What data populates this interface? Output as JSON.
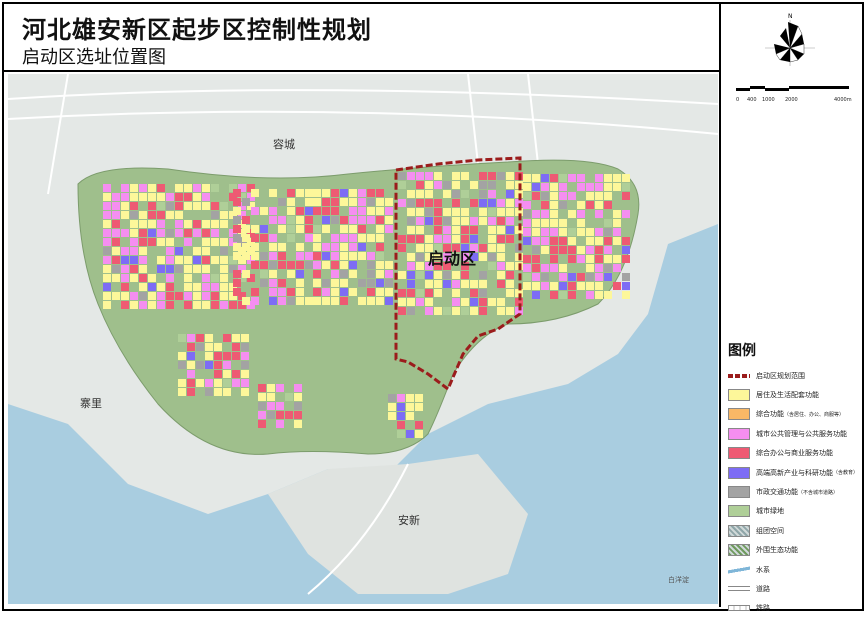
{
  "header": {
    "title": "河北雄安新区起步区控制性规划",
    "subtitle": "启动区选址位置图"
  },
  "compass": {
    "north_label": "N",
    "icon": "north-arrow-compass-rose"
  },
  "scale_bar": {
    "labels": [
      "0",
      "400",
      "1000",
      "2000",
      "4000m"
    ]
  },
  "map": {
    "labels": {
      "rongcheng": "容城",
      "qidongqu": "启动区",
      "zhaili": "寨里",
      "anxin": "安新",
      "baiyangdian": "白洋淀"
    }
  },
  "legend": {
    "title": "图例",
    "items": [
      {
        "label": "启动区规划范围",
        "note": "",
        "color": "#9b1c1c",
        "kind": "dashed-boundary"
      },
      {
        "label": "居住及生活配套功能",
        "note": "",
        "color": "#fdf79a",
        "kind": "fill"
      },
      {
        "label": "综合功能",
        "note": "（含居住、办公、商服等）",
        "color": "#f9b866",
        "kind": "fill"
      },
      {
        "label": "城市公共管理与公共服务功能",
        "note": "",
        "color": "#f58ef0",
        "kind": "fill"
      },
      {
        "label": "综合办公与商业服务功能",
        "note": "",
        "color": "#ee5a73",
        "kind": "fill"
      },
      {
        "label": "高端高新产业与科研功能",
        "note": "（含教育）",
        "color": "#7d6cf5",
        "kind": "fill"
      },
      {
        "label": "市政交通功能",
        "note": "（不含城市道路）",
        "color": "#a3a3a3",
        "kind": "fill"
      },
      {
        "label": "城市绿地",
        "note": "",
        "color": "#afcf98",
        "kind": "fill"
      },
      {
        "label": "组团空间",
        "note": "",
        "color": "#8fa6a8",
        "kind": "pattern"
      },
      {
        "label": "外围生态功能",
        "note": "",
        "color": "#6f9a5e",
        "kind": "pattern"
      },
      {
        "label": "水系",
        "note": "",
        "color": "#7fb6d8",
        "kind": "water"
      },
      {
        "label": "道路",
        "note": "",
        "color": "#ffffff",
        "kind": "road"
      },
      {
        "label": "铁路",
        "note": "",
        "color": "#dddddd",
        "kind": "rail"
      }
    ]
  }
}
